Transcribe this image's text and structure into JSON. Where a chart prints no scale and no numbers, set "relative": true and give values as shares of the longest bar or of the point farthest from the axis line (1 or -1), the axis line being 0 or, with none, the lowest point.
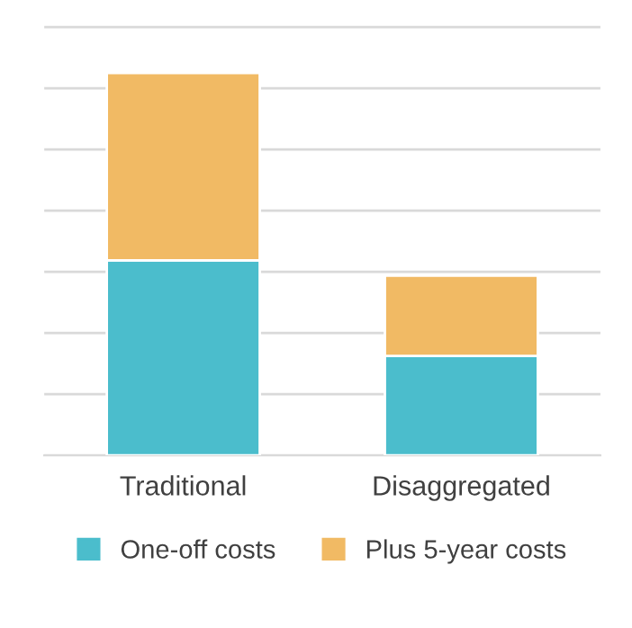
{
  "chart_data": {
    "type": "bar",
    "stacked": true,
    "relative": true,
    "categories": [
      "Traditional",
      "Disaggregated"
    ],
    "series": [
      {
        "name": "One-off costs",
        "color": "#4bbdcc",
        "values": [
          0.51,
          0.26
        ]
      },
      {
        "name": "Plus 5-year costs",
        "color": "#f1ba64",
        "values": [
          0.49,
          0.21
        ]
      }
    ],
    "grid": "y",
    "legend": "bottom"
  }
}
